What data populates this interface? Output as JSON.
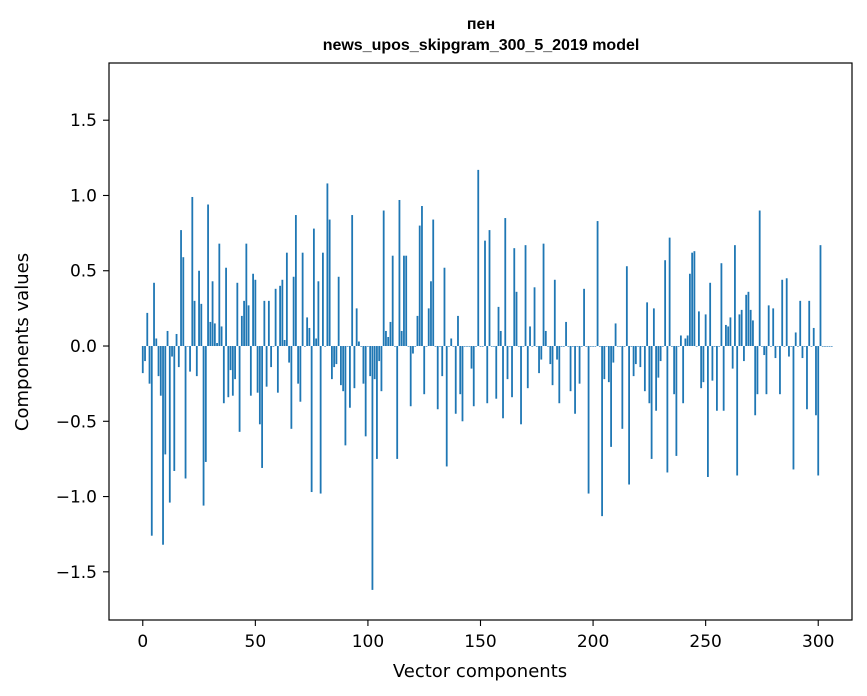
{
  "chart_data": {
    "type": "bar",
    "title": [
      "пен",
      "news_upos_skipgram_300_5_2019 model"
    ],
    "xlabel": "Vector components",
    "ylabel": "Components values",
    "xlim": [
      -15,
      315
    ],
    "ylim": [
      -1.82,
      1.88
    ],
    "xticks": [
      0,
      50,
      100,
      150,
      200,
      250,
      300
    ],
    "yticks": [
      -1.5,
      -1.0,
      -0.5,
      0.0,
      0.5,
      1.0,
      1.5
    ],
    "ytick_labels": [
      "−1.5",
      "−1.0",
      "−0.5",
      "0.0",
      "0.5",
      "1.0",
      "1.5"
    ],
    "bar_color": "#1f77b4",
    "grid": false,
    "legend": "none",
    "values": [
      -0.18,
      -0.1,
      0.22,
      -0.25,
      -1.26,
      0.42,
      0.05,
      -0.2,
      -0.33,
      -1.32,
      -0.72,
      0.1,
      -1.04,
      -0.07,
      -0.83,
      0.08,
      -0.14,
      0.77,
      0.59,
      -0.88,
      0.0,
      -0.17,
      0.99,
      0.3,
      -0.2,
      0.5,
      0.28,
      -1.06,
      -0.77,
      0.94,
      0.16,
      0.43,
      0.15,
      0.02,
      0.68,
      0.13,
      -0.38,
      0.52,
      -0.34,
      -0.16,
      -0.33,
      -0.22,
      0.42,
      -0.57,
      0.2,
      0.3,
      0.68,
      0.27,
      -0.33,
      0.48,
      0.44,
      -0.31,
      -0.52,
      -0.81,
      0.3,
      -0.27,
      0.3,
      -0.14,
      0.0,
      0.38,
      -0.31,
      0.4,
      0.44,
      0.04,
      0.62,
      -0.11,
      -0.55,
      0.46,
      0.87,
      -0.25,
      -0.37,
      0.62,
      0.0,
      0.19,
      0.12,
      -0.97,
      0.78,
      0.05,
      0.43,
      -0.98,
      0.62,
      0.0,
      1.08,
      0.84,
      -0.22,
      -0.14,
      -0.12,
      0.46,
      -0.26,
      -0.3,
      -0.66,
      0.0,
      -0.41,
      0.87,
      -0.28,
      0.25,
      0.03,
      0.0,
      -0.25,
      -0.6,
      0.0,
      -0.2,
      -1.62,
      -0.22,
      -0.75,
      -0.1,
      -0.3,
      0.9,
      0.1,
      0.06,
      0.16,
      0.6,
      0.0,
      -0.75,
      0.97,
      0.1,
      0.6,
      0.6,
      0.0,
      -0.4,
      -0.05,
      0.0,
      0.2,
      0.8,
      0.93,
      -0.32,
      0.0,
      0.25,
      0.43,
      0.84,
      0.0,
      -0.42,
      0.0,
      -0.2,
      0.52,
      -0.8,
      0.0,
      0.05,
      0.0,
      -0.45,
      0.2,
      -0.32,
      -0.5,
      0.0,
      0.0,
      0.0,
      -0.15,
      -0.4,
      0.0,
      1.17,
      0.0,
      0.0,
      0.7,
      -0.38,
      0.77,
      0.0,
      0.0,
      -0.35,
      0.26,
      0.1,
      -0.48,
      0.85,
      -0.22,
      0.0,
      -0.34,
      0.65,
      0.36,
      0.0,
      -0.52,
      0.0,
      0.67,
      -0.28,
      0.13,
      0.0,
      0.39,
      0.0,
      -0.18,
      -0.09,
      0.68,
      0.1,
      0.0,
      -0.12,
      -0.26,
      0.44,
      -0.09,
      -0.38,
      0.0,
      0.0,
      0.16,
      0.0,
      -0.3,
      0.0,
      -0.45,
      0.0,
      -0.25,
      0.0,
      0.38,
      0.0,
      -0.98,
      0.0,
      0.0,
      0.0,
      0.83,
      0.0,
      -1.13,
      -0.22,
      0.0,
      -0.24,
      -0.67,
      -0.11,
      0.15,
      0.0,
      0.0,
      -0.55,
      0.0,
      0.53,
      -0.92,
      0.0,
      -0.2,
      -0.12,
      0.0,
      -0.14,
      0.0,
      -0.3,
      0.29,
      -0.38,
      -0.75,
      0.25,
      -0.43,
      -0.21,
      -0.1,
      0.0,
      0.57,
      -0.84,
      0.72,
      0.0,
      -0.32,
      -0.73,
      0.0,
      0.07,
      -0.38,
      0.05,
      0.07,
      0.48,
      0.62,
      0.63,
      0.0,
      0.23,
      -0.28,
      -0.24,
      0.21,
      -0.87,
      0.42,
      -0.23,
      0.0,
      -0.43,
      0.0,
      0.55,
      -0.43,
      0.14,
      0.13,
      0.19,
      -0.15,
      0.67,
      -0.86,
      0.21,
      0.24,
      -0.1,
      0.34,
      0.36,
      0.24,
      0.17,
      -0.46,
      -0.32,
      0.9,
      0.0,
      -0.06,
      -0.32,
      0.27,
      0.0,
      0.25,
      -0.08,
      0.0,
      -0.32,
      0.44,
      0.0,
      0.45,
      -0.07,
      0.0,
      -0.82,
      0.09,
      0.0,
      0.3,
      -0.08,
      0.0,
      -0.42,
      0.3,
      0.0,
      0.12,
      -0.46,
      -0.86,
      0.67,
      0.0,
      0.0,
      0.0,
      0.0,
      0.0
    ]
  }
}
